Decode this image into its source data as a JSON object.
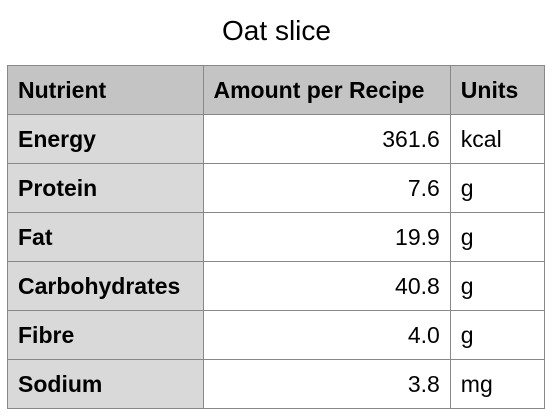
{
  "title": "Oat slice",
  "table": {
    "headers": {
      "nutrient": "Nutrient",
      "amount": "Amount per Recipe",
      "units": "Units"
    },
    "rows": [
      {
        "nutrient": "Energy",
        "amount": "361.6",
        "unit": "kcal"
      },
      {
        "nutrient": "Protein",
        "amount": "7.6",
        "unit": "g"
      },
      {
        "nutrient": "Fat",
        "amount": "19.9",
        "unit": "g"
      },
      {
        "nutrient": "Carbohydrates",
        "amount": "40.8",
        "unit": "g"
      },
      {
        "nutrient": "Fibre",
        "amount": "4.0",
        "unit": "g"
      },
      {
        "nutrient": "Sodium",
        "amount": "3.8",
        "unit": "mg"
      }
    ]
  }
}
